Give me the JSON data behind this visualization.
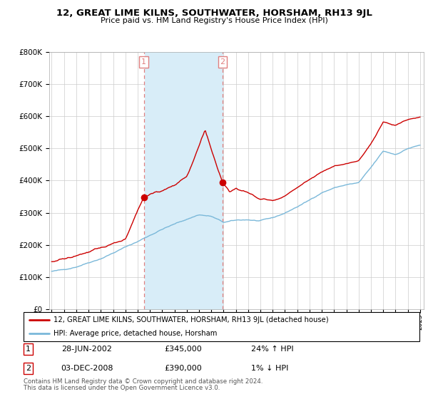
{
  "title": "12, GREAT LIME KILNS, SOUTHWATER, HORSHAM, RH13 9JL",
  "subtitle": "Price paid vs. HM Land Registry's House Price Index (HPI)",
  "sale1_date": "28-JUN-2002",
  "sale1_price": 345000,
  "sale1_hpi": "24% ↑ HPI",
  "sale1_label": "1",
  "sale2_date": "03-DEC-2008",
  "sale2_price": 390000,
  "sale2_hpi": "1% ↓ HPI",
  "sale2_label": "2",
  "legend_line1": "12, GREAT LIME KILNS, SOUTHWATER, HORSHAM, RH13 9JL (detached house)",
  "legend_line2": "HPI: Average price, detached house, Horsham",
  "footnote1": "Contains HM Land Registry data © Crown copyright and database right 2024.",
  "footnote2": "This data is licensed under the Open Government Licence v3.0.",
  "hpi_color": "#7ab8d9",
  "price_color": "#cc0000",
  "sale_dot_color": "#cc0000",
  "shading_color": "#d8edf8",
  "vline_color": "#e08080",
  "ylim": [
    0,
    800000
  ],
  "yticks": [
    0,
    100000,
    200000,
    300000,
    400000,
    500000,
    600000,
    700000,
    800000
  ],
  "sale1_x": 2002.5,
  "sale2_x": 2008.92,
  "bg_color": "#ffffff",
  "grid_color": "#cccccc",
  "n_points": 370,
  "seed": 42
}
